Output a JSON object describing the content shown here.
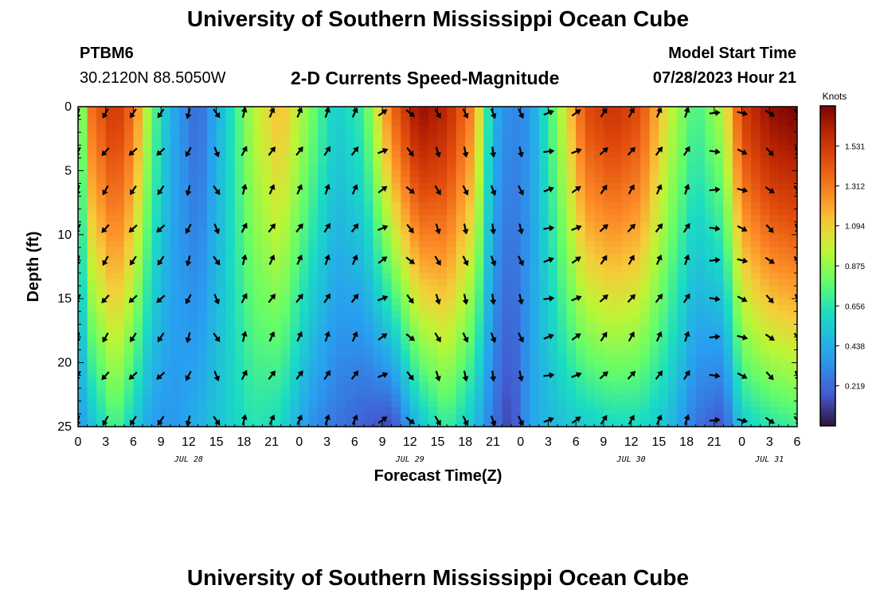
{
  "page": {
    "title_top": "University of Southern Mississippi Ocean Cube",
    "title_bottom": "University of Southern Mississippi Ocean Cube",
    "station_id": "PTBM6",
    "station_coords": "30.2120N  88.5050W",
    "model_start_label": "Model Start Time",
    "model_start_value": "07/28/2023 Hour 21"
  },
  "chart_data": {
    "type": "heatmap",
    "title": "2-D Currents Speed-Magnitude",
    "xlabel": "Forecast Time(Z)",
    "ylabel": "Depth (ft)",
    "xlim": [
      0,
      78
    ],
    "ylim": [
      0,
      25
    ],
    "y_ticks": [
      "0",
      "5",
      "10",
      "15",
      "20",
      "25"
    ],
    "x_ticks": [
      "0",
      "3",
      "6",
      "9",
      "12",
      "15",
      "18",
      "21",
      "0",
      "3",
      "6",
      "9",
      "12",
      "15",
      "18",
      "21",
      "0",
      "3",
      "6",
      "9",
      "12",
      "15",
      "18",
      "21",
      "0",
      "3",
      "6"
    ],
    "date_labels": [
      {
        "label": "JUL 28",
        "hour": 12
      },
      {
        "label": "JUL 29",
        "hour": 36
      },
      {
        "label": "JUL 30",
        "hour": 60
      },
      {
        "label": "JUL 31",
        "hour": 75
      }
    ],
    "colorbar": {
      "units": "Knots",
      "ticks": [
        "1.531",
        "1.312",
        "1.094",
        "0.875",
        "0.656",
        "0.438",
        "0.219"
      ],
      "tick_values": [
        1.531,
        1.312,
        1.094,
        0.875,
        0.656,
        0.438,
        0.219
      ],
      "range": [
        0,
        1.75
      ]
    },
    "speed_profiles": [
      {
        "hour": 0,
        "top": 0.4,
        "bottom": 0.35
      },
      {
        "hour": 1,
        "top": 1.3,
        "bottom": 0.45
      },
      {
        "hour": 4,
        "top": 1.55,
        "bottom": 0.75
      },
      {
        "hour": 6,
        "top": 1.35,
        "bottom": 0.55
      },
      {
        "hour": 8,
        "top": 0.8,
        "bottom": 0.38
      },
      {
        "hour": 10,
        "top": 0.45,
        "bottom": 0.35
      },
      {
        "hour": 13,
        "top": 0.2,
        "bottom": 0.45
      },
      {
        "hour": 16,
        "top": 0.55,
        "bottom": 0.55
      },
      {
        "hour": 19,
        "top": 0.95,
        "bottom": 0.65
      },
      {
        "hour": 22,
        "top": 1.15,
        "bottom": 0.6
      },
      {
        "hour": 25,
        "top": 0.85,
        "bottom": 0.35
      },
      {
        "hour": 28,
        "top": 0.55,
        "bottom": 0.25
      },
      {
        "hour": 31,
        "top": 0.7,
        "bottom": 0.18
      },
      {
        "hour": 34,
        "top": 1.35,
        "bottom": 0.12
      },
      {
        "hour": 37,
        "top": 1.7,
        "bottom": 0.5
      },
      {
        "hour": 40,
        "top": 1.6,
        "bottom": 0.7
      },
      {
        "hour": 43,
        "top": 1.25,
        "bottom": 0.5
      },
      {
        "hour": 45,
        "top": 0.45,
        "bottom": 0.25
      },
      {
        "hour": 47,
        "top": 0.3,
        "bottom": 0.1
      },
      {
        "hour": 49,
        "top": 0.35,
        "bottom": 0.4
      },
      {
        "hour": 52,
        "top": 0.85,
        "bottom": 0.5
      },
      {
        "hour": 55,
        "top": 1.45,
        "bottom": 0.55
      },
      {
        "hour": 58,
        "top": 1.55,
        "bottom": 0.6
      },
      {
        "hour": 61,
        "top": 1.45,
        "bottom": 0.6
      },
      {
        "hour": 64,
        "top": 1.0,
        "bottom": 0.5
      },
      {
        "hour": 67,
        "top": 0.7,
        "bottom": 0.25
      },
      {
        "hour": 70,
        "top": 0.95,
        "bottom": 0.15
      },
      {
        "hour": 72,
        "top": 1.5,
        "bottom": 0.55
      },
      {
        "hour": 75,
        "top": 1.7,
        "bottom": 0.65
      },
      {
        "hour": 78,
        "top": 1.75,
        "bottom": 0.7
      }
    ],
    "arrow_depths": [
      0.5,
      3.5,
      6.5,
      9.5,
      12,
      15,
      18,
      21,
      24.5
    ],
    "arrow_hours": [
      0,
      3,
      6,
      9,
      12,
      15,
      18,
      21,
      24,
      27,
      30,
      33,
      36,
      39,
      42,
      45,
      48,
      51,
      54,
      57,
      60,
      63,
      66,
      69,
      72,
      75,
      78
    ],
    "arrow_direction_by_hour": [
      200,
      215,
      220,
      220,
      200,
      150,
      20,
      30,
      30,
      25,
      30,
      60,
      135,
      155,
      160,
      165,
      160,
      75,
      60,
      40,
      35,
      30,
      25,
      90,
      110,
      130,
      150
    ]
  }
}
